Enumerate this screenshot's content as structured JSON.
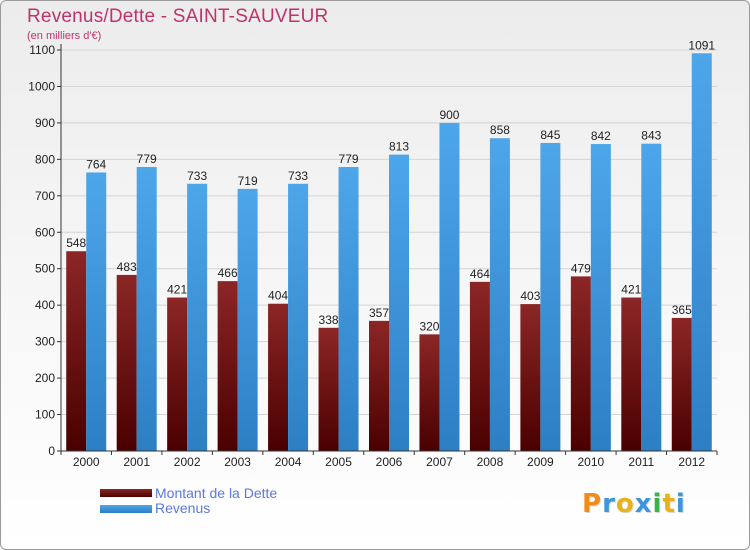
{
  "title": "Revenus/Dette - SAINT-SAUVEUR",
  "subtitle": "(en milliers d'€)",
  "logo_text": "Proxiti",
  "colors": {
    "dette": "#7a1a1a",
    "revenus": "#3d95dc",
    "title": "#c0336a",
    "legend_text": "#5a78e0"
  },
  "chart_data": {
    "type": "bar",
    "title": "Revenus/Dette - SAINT-SAUVEUR",
    "ylabel": "(en milliers d'€)",
    "xlabel": "",
    "ylim": [
      0,
      1100
    ],
    "yticks": [
      0,
      100,
      200,
      300,
      400,
      500,
      600,
      700,
      800,
      900,
      1000,
      1100
    ],
    "categories": [
      "2000",
      "2001",
      "2002",
      "2003",
      "2004",
      "2005",
      "2006",
      "2007",
      "2008",
      "2009",
      "2010",
      "2011",
      "2012"
    ],
    "series": [
      {
        "name": "Montant de la Dette",
        "values": [
          548,
          483,
          421,
          466,
          404,
          338,
          357,
          320,
          464,
          403,
          479,
          421,
          365
        ]
      },
      {
        "name": "Revenus",
        "values": [
          764,
          779,
          733,
          719,
          733,
          779,
          813,
          900,
          858,
          845,
          842,
          843,
          1091
        ]
      }
    ],
    "legend": [
      "Montant de la Dette",
      "Revenus"
    ],
    "legend_position": "bottom-left",
    "grid": true
  }
}
